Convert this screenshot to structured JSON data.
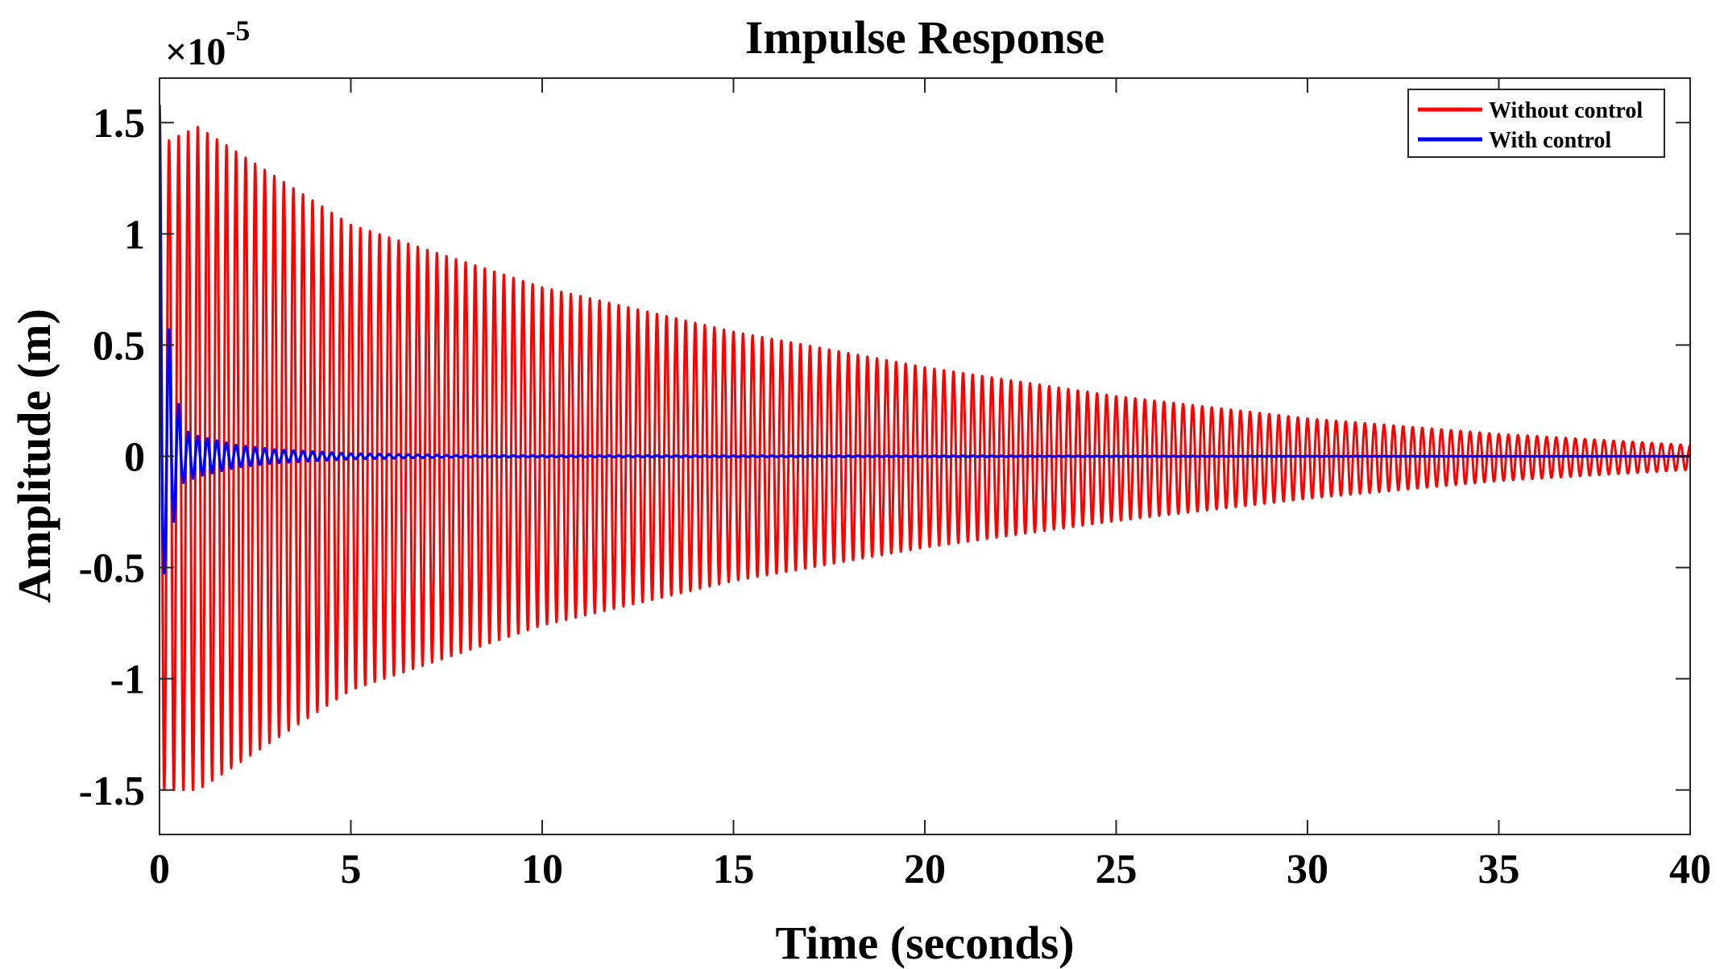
{
  "chart_data": {
    "type": "line",
    "title": "Impulse Response",
    "xlabel": "Time (seconds)",
    "ylabel": "Amplitude (m)",
    "y_exponent_label": {
      "base": "×10",
      "exponent": "-5"
    },
    "xlim": [
      0,
      40
    ],
    "ylim": [
      -1.7,
      1.7
    ],
    "xticks": [
      0,
      5,
      10,
      15,
      20,
      25,
      30,
      35,
      40
    ],
    "xtick_labels": [
      "0",
      "5",
      "10",
      "15",
      "20",
      "25",
      "30",
      "35",
      "40"
    ],
    "yticks": [
      -1.5,
      -1,
      -0.5,
      0,
      0.5,
      1,
      1.5
    ],
    "ytick_labels": [
      "-1.5",
      "-1",
      "-0.5",
      "0",
      "0.5",
      "1",
      "1.5"
    ],
    "grid": false,
    "legend_position": "top-right",
    "legend": [
      "Without control",
      "With control"
    ],
    "series": [
      {
        "name": "Without control",
        "color": "#ff0000",
        "envelope": {
          "t": [
            0,
            1,
            5,
            10,
            15,
            20,
            25,
            30,
            35,
            40
          ],
          "upper": [
            1.4,
            1.48,
            1.04,
            0.76,
            0.56,
            0.4,
            0.27,
            0.17,
            0.1,
            0.05
          ],
          "lower": [
            -1.5,
            -1.5,
            -1.05,
            -0.76,
            -0.56,
            -0.41,
            -0.29,
            -0.19,
            -0.11,
            -0.06
          ]
        },
        "oscillation_frequency_hz": 4
      },
      {
        "name": "With control",
        "color": "#0000ff",
        "envelope": {
          "t": [
            0,
            0.1,
            0.3,
            0.6,
            1,
            2,
            3,
            5,
            8,
            40
          ],
          "upper": [
            1.58,
            0.9,
            0.45,
            0.12,
            0.09,
            0.05,
            0.03,
            0.012,
            0.003,
            0
          ],
          "lower": [
            -1.3,
            -0.55,
            -0.35,
            -0.12,
            -0.09,
            -0.05,
            -0.03,
            -0.012,
            -0.003,
            0
          ]
        },
        "oscillation_frequency_hz": 4
      }
    ]
  }
}
